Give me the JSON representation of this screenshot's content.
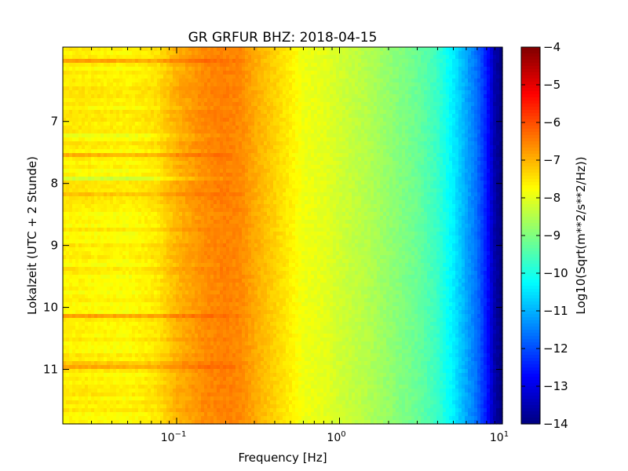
{
  "chart_data": {
    "type": "heatmap",
    "title": "GR GRFUR BHZ: 2018-04-15",
    "xlabel": "Frequency [Hz]",
    "ylabel": "Lokalzeit (UTC + 2 Stunde)",
    "x_scale": "log",
    "xlim": [
      0.02,
      10
    ],
    "ylim": [
      5.8,
      11.88
    ],
    "y_inverted": true,
    "x_ticks": [
      {
        "value": 0.1,
        "base": "10",
        "exp": "−1"
      },
      {
        "value": 1,
        "base": "10",
        "exp": "0"
      },
      {
        "value": 10,
        "base": "10",
        "exp": "1"
      }
    ],
    "y_ticks": [
      {
        "value": 7,
        "label": "7"
      },
      {
        "value": 8,
        "label": "8"
      },
      {
        "value": 9,
        "label": "9"
      },
      {
        "value": 10,
        "label": "10"
      },
      {
        "value": 11,
        "label": "11"
      }
    ],
    "colormap": "jet",
    "colorbar": {
      "label": "Log10(Sqrt(m**2/s**2/Hz))",
      "range": [
        -14,
        -4
      ],
      "ticks": [
        {
          "value": -4,
          "label": "−4"
        },
        {
          "value": -5,
          "label": "−5"
        },
        {
          "value": -6,
          "label": "−6"
        },
        {
          "value": -7,
          "label": "−7"
        },
        {
          "value": -8,
          "label": "−8"
        },
        {
          "value": -9,
          "label": "−9"
        },
        {
          "value": -10,
          "label": "−10"
        },
        {
          "value": -11,
          "label": "−11"
        },
        {
          "value": -12,
          "label": "−12"
        },
        {
          "value": -13,
          "label": "−13"
        },
        {
          "value": -14,
          "label": "−14"
        }
      ]
    },
    "frequencies": [
      0.025,
      0.05,
      0.075,
      0.1,
      0.15,
      0.2,
      0.25,
      0.3,
      0.4,
      0.5,
      0.6,
      0.8,
      1.0,
      1.5,
      2.0,
      3.0,
      4.0,
      5.0,
      6.0,
      7.0,
      8.0,
      9.0,
      10.0
    ],
    "mean_spectrum": [
      -7.6,
      -7.7,
      -7.5,
      -7.0,
      -6.6,
      -6.5,
      -6.6,
      -6.9,
      -7.3,
      -7.6,
      -7.9,
      -8.0,
      -8.2,
      -8.5,
      -8.8,
      -9.2,
      -9.7,
      -10.4,
      -11.1,
      -11.7,
      -12.5,
      -13.6,
      -14.0
    ],
    "time_rows": [
      {
        "time": 6.05,
        "offset": 0.8
      },
      {
        "time": 7.57,
        "offset": 0.7
      },
      {
        "time": 8.19,
        "offset": 0.6
      },
      {
        "time": 10.14,
        "offset": 0.8
      },
      {
        "time": 10.93,
        "offset": 0.6
      },
      {
        "time": 7.2,
        "offset": -0.4
      },
      {
        "time": 7.9,
        "offset": -0.4
      },
      {
        "time": 9.3,
        "offset": -0.3
      }
    ]
  }
}
